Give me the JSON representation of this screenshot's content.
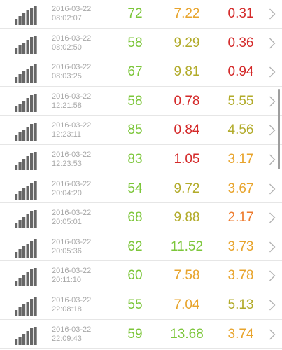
{
  "colors": {
    "green": "#7cc63a",
    "olive": "#b2ab2a",
    "orange": "#e8a42c",
    "deep_orange": "#ee7a2c",
    "red": "#d42a2a",
    "gray_text": "#a9a9a9",
    "icon": "#666666"
  },
  "rows": [
    {
      "date": "2016-03-22",
      "time": "08:02:07",
      "v1": "72",
      "v1_color": "#7cc63a",
      "v2": "7.22",
      "v2_color": "#e8a42c",
      "v3": "0.31",
      "v3_color": "#d42a2a"
    },
    {
      "date": "2016-03-22",
      "time": "08:02:50",
      "v1": "58",
      "v1_color": "#7cc63a",
      "v2": "9.29",
      "v2_color": "#b2ab2a",
      "v3": "0.36",
      "v3_color": "#d42a2a"
    },
    {
      "date": "2016-03-22",
      "time": "08:03:25",
      "v1": "67",
      "v1_color": "#7cc63a",
      "v2": "9.81",
      "v2_color": "#b2ab2a",
      "v3": "0.94",
      "v3_color": "#d42a2a"
    },
    {
      "date": "2016-03-22",
      "time": "12:21:58",
      "v1": "58",
      "v1_color": "#7cc63a",
      "v2": "0.78",
      "v2_color": "#d42a2a",
      "v3": "5.55",
      "v3_color": "#b2ab2a"
    },
    {
      "date": "2016-03-22",
      "time": "12:23:11",
      "v1": "85",
      "v1_color": "#7cc63a",
      "v2": "0.84",
      "v2_color": "#d42a2a",
      "v3": "4.56",
      "v3_color": "#b2ab2a"
    },
    {
      "date": "2016-03-22",
      "time": "12:23:53",
      "v1": "83",
      "v1_color": "#7cc63a",
      "v2": "1.05",
      "v2_color": "#d42a2a",
      "v3": "3.17",
      "v3_color": "#e8a42c"
    },
    {
      "date": "2016-03-22",
      "time": "20:04:20",
      "v1": "54",
      "v1_color": "#7cc63a",
      "v2": "9.72",
      "v2_color": "#b2ab2a",
      "v3": "3.67",
      "v3_color": "#e8a42c"
    },
    {
      "date": "2016-03-22",
      "time": "20:05:01",
      "v1": "68",
      "v1_color": "#7cc63a",
      "v2": "9.88",
      "v2_color": "#b2ab2a",
      "v3": "2.17",
      "v3_color": "#ee7a2c"
    },
    {
      "date": "2016-03-22",
      "time": "20:05:36",
      "v1": "62",
      "v1_color": "#7cc63a",
      "v2": "11.52",
      "v2_color": "#7cc63a",
      "v3": "3.73",
      "v3_color": "#e8a42c"
    },
    {
      "date": "2016-03-22",
      "time": "20:11:10",
      "v1": "60",
      "v1_color": "#7cc63a",
      "v2": "7.58",
      "v2_color": "#e8a42c",
      "v3": "3.78",
      "v3_color": "#e8a42c"
    },
    {
      "date": "2016-03-22",
      "time": "22:08:18",
      "v1": "55",
      "v1_color": "#7cc63a",
      "v2": "7.04",
      "v2_color": "#e8a42c",
      "v3": "5.13",
      "v3_color": "#b2ab2a"
    },
    {
      "date": "2016-03-22",
      "time": "22:09:43",
      "v1": "59",
      "v1_color": "#7cc63a",
      "v2": "13.68",
      "v2_color": "#7cc63a",
      "v3": "3.74",
      "v3_color": "#e8a42c"
    }
  ],
  "icons": {
    "row_signal": "signal-bars-icon",
    "row_chevron": "chevron-right-icon"
  }
}
